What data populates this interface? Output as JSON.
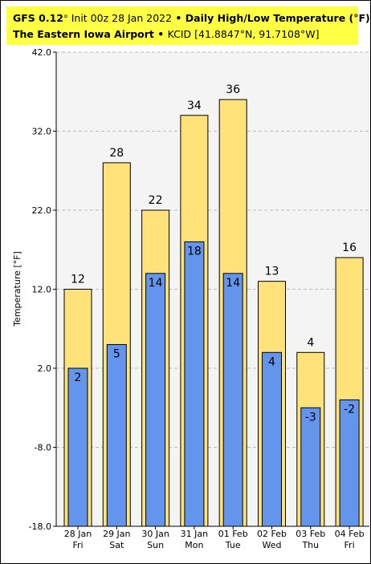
{
  "header": {
    "model": "GFS 0.12",
    "deg": "°",
    "init": " Init 00z 28 Jan 2022",
    "sep1": " • ",
    "title": "Daily High/Low Temperature (°F)",
    "location": "The Eastern Iowa Airport",
    "sep2": " • ",
    "station": "KCID [41.8847°N, 91.7108°W]"
  },
  "chart_data": {
    "type": "bar",
    "ylabel": "Temperature [°F]",
    "ylim": [
      -18,
      42
    ],
    "yticks": [
      "42.0",
      "32.0",
      "22.0",
      "12.0",
      "2.0",
      "-8.0",
      "-18.0"
    ],
    "yticks_values": [
      42,
      32,
      22,
      12,
      2,
      -8,
      -18
    ],
    "grid": true,
    "categories": [
      {
        "date": "28 Jan",
        "day": "Fri"
      },
      {
        "date": "29 Jan",
        "day": "Sat"
      },
      {
        "date": "30 Jan",
        "day": "Sun"
      },
      {
        "date": "31 Jan",
        "day": "Mon"
      },
      {
        "date": "01 Feb",
        "day": "Tue"
      },
      {
        "date": "02 Feb",
        "day": "Wed"
      },
      {
        "date": "03 Feb",
        "day": "Thu"
      },
      {
        "date": "04 Feb",
        "day": "Fri"
      }
    ],
    "series": [
      {
        "values": [
          12,
          28,
          22,
          34,
          36,
          13,
          4,
          16
        ],
        "color": "#ffe27a"
      },
      {
        "values": [
          2,
          5,
          14,
          18,
          14,
          4,
          -3,
          -2
        ],
        "color": "#6495ed"
      }
    ]
  }
}
